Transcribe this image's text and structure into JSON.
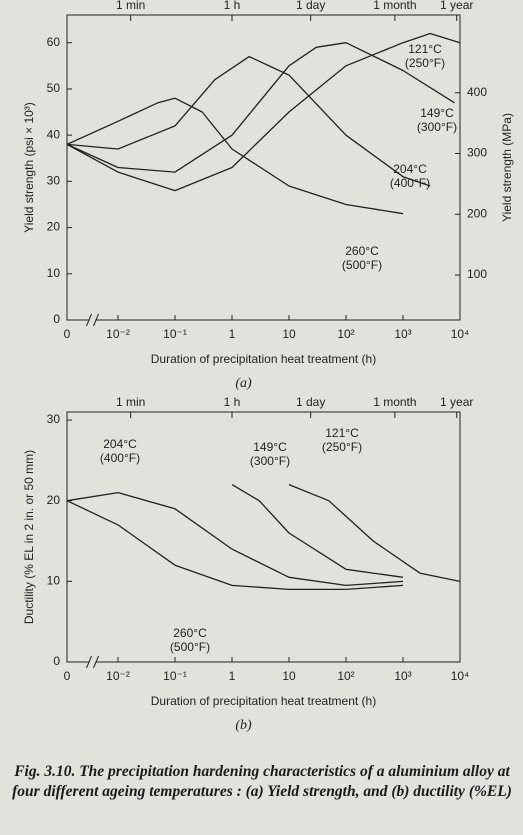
{
  "chart_data": [
    {
      "type": "line",
      "panel_label": "(a)",
      "x_label": "Duration of precipitation heat treatment (h)",
      "y_label": "Yield strength (psi × 10³)",
      "y2_label": "Yield strength (MPa)",
      "xscale": "log",
      "x_break": true,
      "color": "#222",
      "xlim": [
        0,
        10000
      ],
      "xticks": [
        0,
        {
          "value": 0.01,
          "label": "10⁻²"
        },
        {
          "value": 0.1,
          "label": "10⁻¹"
        },
        1,
        10,
        {
          "value": 100,
          "label": "10²"
        },
        {
          "value": 1000,
          "label": "10³"
        },
        {
          "value": 10000,
          "label": "10⁴"
        }
      ],
      "x2ticks": [
        {
          "value": 0.0167,
          "label": "1 min"
        },
        {
          "value": 1,
          "label": "1 h"
        },
        {
          "value": 24,
          "label": "1 day"
        },
        {
          "value": 720,
          "label": "1 month"
        },
        {
          "value": 8760,
          "label": "1 year"
        }
      ],
      "ylim": [
        0,
        66
      ],
      "yticks": [
        0,
        10,
        20,
        30,
        40,
        50,
        60
      ],
      "y2lim": [
        26,
        528
      ],
      "y2ticks": [
        100,
        200,
        300,
        400
      ],
      "series": [
        {
          "name": "121°C",
          "name_f": "(250°F)",
          "x": [
            0,
            0.01,
            0.1,
            1,
            10,
            100,
            1000,
            3000,
            10000
          ],
          "values": [
            38,
            32,
            28,
            33,
            45,
            55,
            60,
            62,
            60
          ]
        },
        {
          "name": "149°C",
          "name_f": "(300°F)",
          "x": [
            0,
            0.01,
            0.1,
            1,
            10,
            30,
            100,
            1000,
            8000
          ],
          "values": [
            38,
            33,
            32,
            40,
            55,
            59,
            60,
            54,
            47
          ]
        },
        {
          "name": "204°C",
          "name_f": "(400°F)",
          "x": [
            0,
            0.01,
            0.1,
            0.5,
            2,
            10,
            100,
            1000,
            3000
          ],
          "values": [
            38,
            37,
            42,
            52,
            57,
            53,
            40,
            31,
            29
          ]
        },
        {
          "name": "260°C",
          "name_f": "(500°F)",
          "x": [
            0,
            0.01,
            0.05,
            0.1,
            0.3,
            1,
            10,
            100,
            1000
          ],
          "values": [
            38,
            43,
            47,
            48,
            45,
            37,
            29,
            25,
            23
          ]
        }
      ]
    },
    {
      "type": "line",
      "panel_label": "(b)",
      "x_label": "Duration of precipitation heat treatment (h)",
      "y_label": "Ductility (% EL in 2 in. or 50 mm)",
      "xscale": "log",
      "x_break": true,
      "color": "#222",
      "xlim": [
        0,
        10000
      ],
      "xticks": [
        0,
        {
          "value": 0.01,
          "label": "10⁻²"
        },
        {
          "value": 0.1,
          "label": "10⁻¹"
        },
        1,
        10,
        {
          "value": 100,
          "label": "10²"
        },
        {
          "value": 1000,
          "label": "10³"
        },
        {
          "value": 10000,
          "label": "10⁴"
        }
      ],
      "x2ticks": [
        {
          "value": 0.0167,
          "label": "1 min"
        },
        {
          "value": 1,
          "label": "1 h"
        },
        {
          "value": 24,
          "label": "1 day"
        },
        {
          "value": 720,
          "label": "1 month"
        },
        {
          "value": 8760,
          "label": "1 year"
        }
      ],
      "ylim": [
        0,
        31
      ],
      "yticks": [
        0,
        10,
        20,
        30
      ],
      "series": [
        {
          "name": "204°C",
          "name_f": "(400°F)",
          "x": [
            0,
            0.01,
            0.1,
            1,
            10,
            100,
            1000
          ],
          "values": [
            20,
            21,
            19,
            14,
            10.5,
            9.5,
            10
          ]
        },
        {
          "name": "149°C",
          "name_f": "(300°F)",
          "x": [
            1,
            3,
            10,
            100,
            1000
          ],
          "values": [
            22,
            20,
            16,
            11.5,
            10.5
          ]
        },
        {
          "name": "121°C",
          "name_f": "(250°F)",
          "x": [
            10,
            50,
            300,
            2000,
            10000
          ],
          "values": [
            22,
            20,
            15,
            11,
            10
          ]
        },
        {
          "name": "260°C",
          "name_f": "(500°F)",
          "x": [
            0,
            0.01,
            0.1,
            1,
            10,
            100,
            1000
          ],
          "values": [
            20,
            17,
            12,
            9.5,
            9,
            9,
            9.5
          ]
        }
      ]
    }
  ],
  "caption": "Fig. 3.10. The precipitation hardening characteristics of a aluminium alloy at four different ageing temperatures : (a) Yield strength, and (b) ductility (%EL)"
}
